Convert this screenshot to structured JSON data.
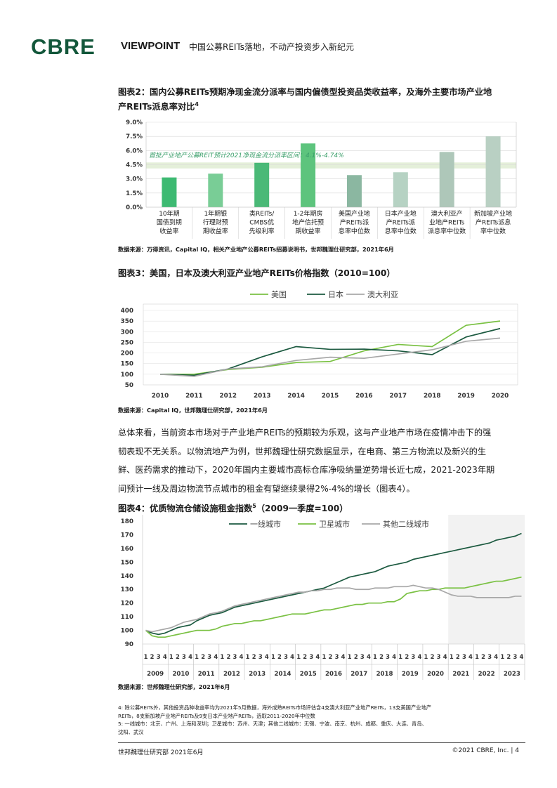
{
  "header": {
    "logo": "CBRE",
    "viewpoint": "VIEWPOINT",
    "doc_title": "中国公募REITs落地，不动产投资步入新纪元"
  },
  "fig2": {
    "title_line1": "图表2：国内公募REITs预期净现金流分派率与国内偏债型投资品类收益率，及海外主要市场产业地",
    "title_line2": "产REITs派息率对比",
    "title_sup": "4",
    "annotation": "首批产业地产公募REIT预计2021净现金流分派率区间：4.1%-4.74%",
    "source": "数据来源：万得资讯，Capital IQ，相关产业地产公募REITs招募说明书，世邦魏理仕研究部，2021年6月"
  },
  "fig3": {
    "title": "图表3：美国，日本及澳大利亚产业地产REITs价格指数（2010=100）",
    "source": "数据来源：Capital IQ，世邦魏理仕研究部，2021年6月"
  },
  "body": {
    "lines": [
      "总体来看，当前资本市场对于产业地产REITs的预期较为乐观，这与产业地产市场在疫情冲击下的强",
      "韧表现不无关系。以物流地产为例，世邦魏理仕研究数据显示，在电商、第三方物流以及新兴的生",
      "鲜、医药需求的推动下，2020年国内主要城市高标仓库净吸纳量逆势增长近七成，2021-2023年期",
      "间预计一线及周边物流节点城市的租金有望继续录得2%-4%的增长（图表4）。"
    ]
  },
  "fig4": {
    "title": "图表4：优质物流仓储设施租金指数",
    "title_sup": "5",
    "title_tail": "（2009一季度=100）",
    "source": "数据来源：世邦魏理仕研究部，2021年6月"
  },
  "footnotes": {
    "lines": [
      "4: 除公募REITs外，其他投资品种收益率均为2021年5月数据，海外成熟REITs市场评估含4支澳大利亚产业地产REITs，13支美国产业地产",
      "REITs，8支新加坡产业地产REITs及9支日本产业地产REITs，选取2011-2020年中位数",
      "5: 一线城市：北京、广州、上海和深圳；卫星城市：苏州、天津；其他二线城市：无锡、宁波、南京、杭州、成都、重庆、大连、青岛、",
      "沈阳、武汉"
    ]
  },
  "footer": {
    "left": "世邦魏理仕研究部 2021年6月",
    "right": "©2021 CBRE, Inc.  |   4"
  },
  "chart_data": [
    {
      "type": "bar",
      "y_ticks": [
        "9.0%",
        "7.5%",
        "6.0%",
        "4.5%",
        "3.0%",
        "1.5%",
        "0.0%"
      ],
      "ylim": [
        0,
        9
      ],
      "band": [
        4.1,
        4.74
      ],
      "band_color": "#e4efd9",
      "categories": [
        [
          "10年期",
          "国债到期",
          "收益率"
        ],
        [
          "1年期银",
          "行理财预",
          "期收益率"
        ],
        [
          "类REITs/",
          "CMBS优",
          "先级利率"
        ],
        [
          "1-2年期房",
          "地产信托预",
          "期收益率"
        ],
        [
          "美国产业地",
          "产REITs派",
          "息率中位数"
        ],
        [
          "日本产业地",
          "产REITs派",
          "息率中位数"
        ],
        [
          "澳大利亚产",
          "业地产REITs",
          "派息率中位数"
        ],
        [
          "新加坡产业地",
          "产REITs派息",
          "率中位数"
        ]
      ],
      "values": [
        3.15,
        3.55,
        4.7,
        6.75,
        3.4,
        3.7,
        5.85,
        7.5
      ],
      "colors": [
        "#3dba72",
        "#79cd96",
        "#4ab977",
        "#5dc47d",
        "#8bb7a1",
        "#b6d2c3",
        "#aec7b9",
        "#b9d0c3"
      ]
    },
    {
      "type": "line",
      "legend": [
        "美国",
        "日本",
        "澳大利亚"
      ],
      "colors": [
        "#7ac143",
        "#1c5a40",
        "#a8a8a8"
      ],
      "x": [
        "2010",
        "2011",
        "2012",
        "2013",
        "2014",
        "2015",
        "2016",
        "2017",
        "2018",
        "2019",
        "2020"
      ],
      "y_ticks": [
        "400",
        "350",
        "300",
        "250",
        "200",
        "150",
        "100",
        "50"
      ],
      "ylim": [
        50,
        400
      ],
      "series": [
        {
          "name": "美国",
          "values": [
            100,
            100,
            122,
            133,
            155,
            160,
            210,
            240,
            230,
            330,
            350
          ]
        },
        {
          "name": "日本",
          "values": [
            100,
            95,
            125,
            182,
            230,
            217,
            218,
            210,
            192,
            275,
            315
          ]
        },
        {
          "name": "澳大利亚",
          "values": [
            100,
            90,
            125,
            135,
            165,
            180,
            175,
            195,
            215,
            255,
            270
          ]
        }
      ]
    },
    {
      "type": "line",
      "legend": [
        "一线城市",
        "卫星城市",
        "其他二线城市"
      ],
      "colors": [
        "#1c5a40",
        "#7ac143",
        "#a8a8a8"
      ],
      "years": [
        "2009",
        "2010",
        "2011",
        "2012",
        "2013",
        "2014",
        "2015",
        "2016",
        "2017",
        "2018",
        "2019",
        "2020",
        "2021",
        "2022",
        "2023"
      ],
      "quarter_labels": [
        "1",
        "2",
        "3",
        "4"
      ],
      "y_ticks": [
        "180",
        "170",
        "160",
        "150",
        "140",
        "130",
        "120",
        "110",
        "100",
        "90"
      ],
      "ylim": [
        90,
        180
      ],
      "forecast_from_year": "2021",
      "forecast_shade": "#f2f2f2",
      "series": [
        {
          "name": "一线城市",
          "values": [
            100,
            98,
            97,
            98,
            100,
            102,
            103,
            104,
            107,
            109,
            111,
            112,
            113,
            115,
            117,
            118,
            119,
            120,
            121,
            122,
            123,
            124,
            125,
            126,
            127,
            128,
            129,
            130,
            131,
            133,
            135,
            137,
            139,
            140,
            141,
            142,
            143,
            145,
            147,
            148,
            149,
            150,
            152,
            153,
            154,
            155,
            156,
            157,
            158,
            159,
            160,
            161,
            162,
            163,
            164,
            166,
            167,
            168,
            169,
            171
          ]
        },
        {
          "name": "卫星城市",
          "values": [
            100,
            96,
            95,
            95,
            96,
            97,
            98,
            99,
            100,
            100,
            100,
            101,
            103,
            104,
            105,
            105,
            106,
            107,
            107,
            108,
            109,
            110,
            111,
            112,
            112,
            112,
            113,
            114,
            115,
            115,
            116,
            117,
            118,
            119,
            119,
            120,
            120,
            120,
            121,
            121,
            123,
            127,
            128,
            129,
            129,
            130,
            130,
            131,
            131,
            131,
            131,
            132,
            133,
            134,
            135,
            136,
            136,
            137,
            138,
            139
          ]
        },
        {
          "name": "其他二线城市",
          "values": [
            100,
            99,
            100,
            101,
            102,
            104,
            106,
            107,
            108,
            110,
            112,
            113,
            114,
            116,
            118,
            119,
            120,
            121,
            122,
            123,
            124,
            125,
            126,
            127,
            128,
            128,
            129,
            129,
            130,
            130,
            131,
            131,
            131,
            130,
            130,
            130,
            131,
            131,
            131,
            132,
            132,
            132,
            133,
            132,
            131,
            131,
            130,
            128,
            126,
            125,
            125,
            125,
            124,
            124,
            124,
            124,
            124,
            124,
            125,
            125
          ]
        }
      ]
    }
  ]
}
